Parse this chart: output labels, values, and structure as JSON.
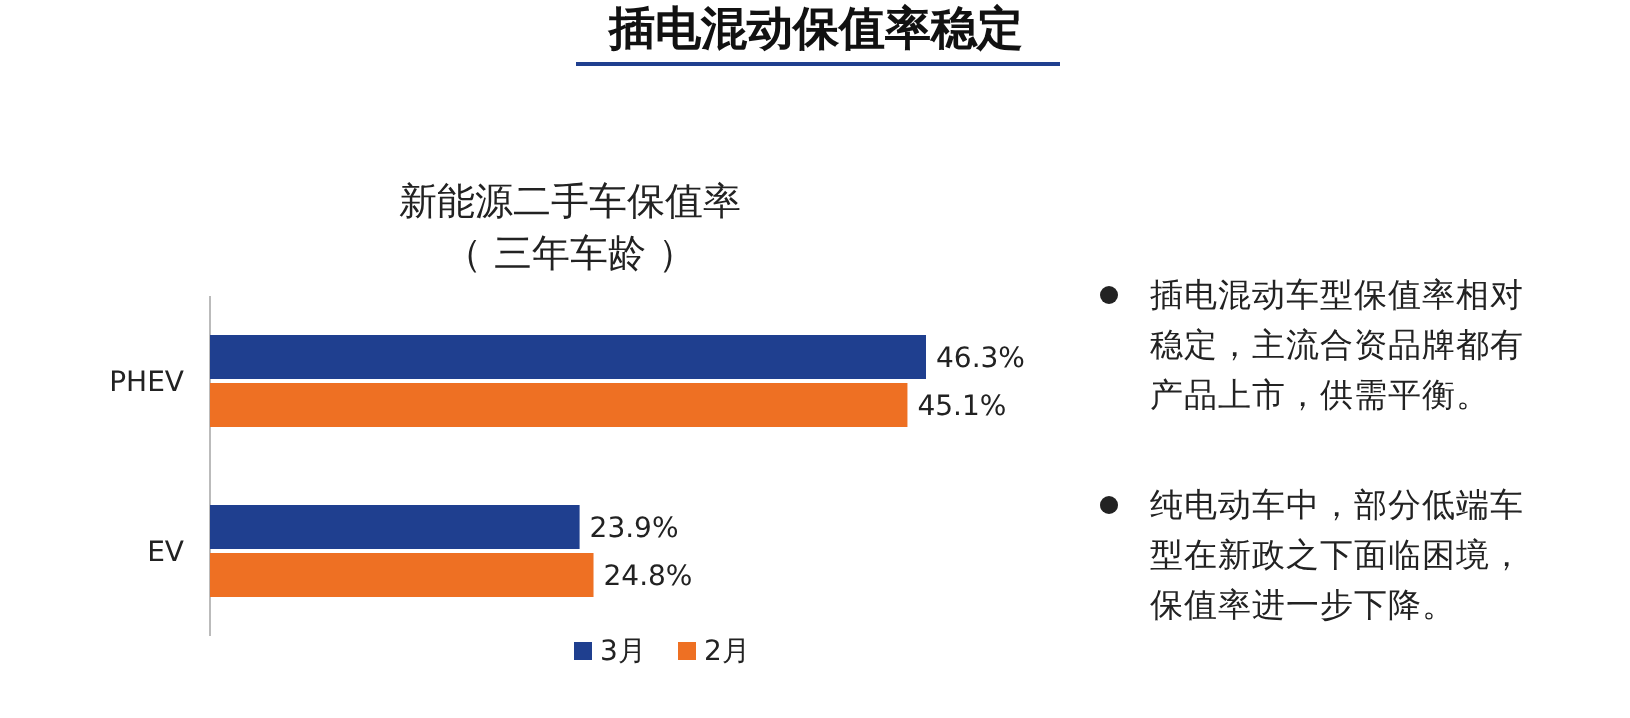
{
  "chart_data": {
    "type": "bar",
    "orientation": "horizontal",
    "title": "插电混动保值率稳定",
    "subtitle": "新能源二手车保值率（ 三年车龄 ）",
    "categories": [
      "PHEV",
      "EV"
    ],
    "series": [
      {
        "name": "3月",
        "color": "#1f3f8f",
        "values": [
          46.3,
          23.9
        ],
        "value_labels": [
          "46.3%",
          "23.9%"
        ]
      },
      {
        "name": "2月",
        "color": "#ee7023",
        "values": [
          45.1,
          24.8
        ],
        "value_labels": [
          "45.1%",
          "24.8%"
        ]
      }
    ],
    "legend": "bottom",
    "annotations": [
      "插电混动车型保值率相对稳定，主流合资品牌都有产品上市，供需平衡。",
      "纯电动车中，部分低端车型在新政之下面临困境，保值率进一步下降。"
    ]
  }
}
